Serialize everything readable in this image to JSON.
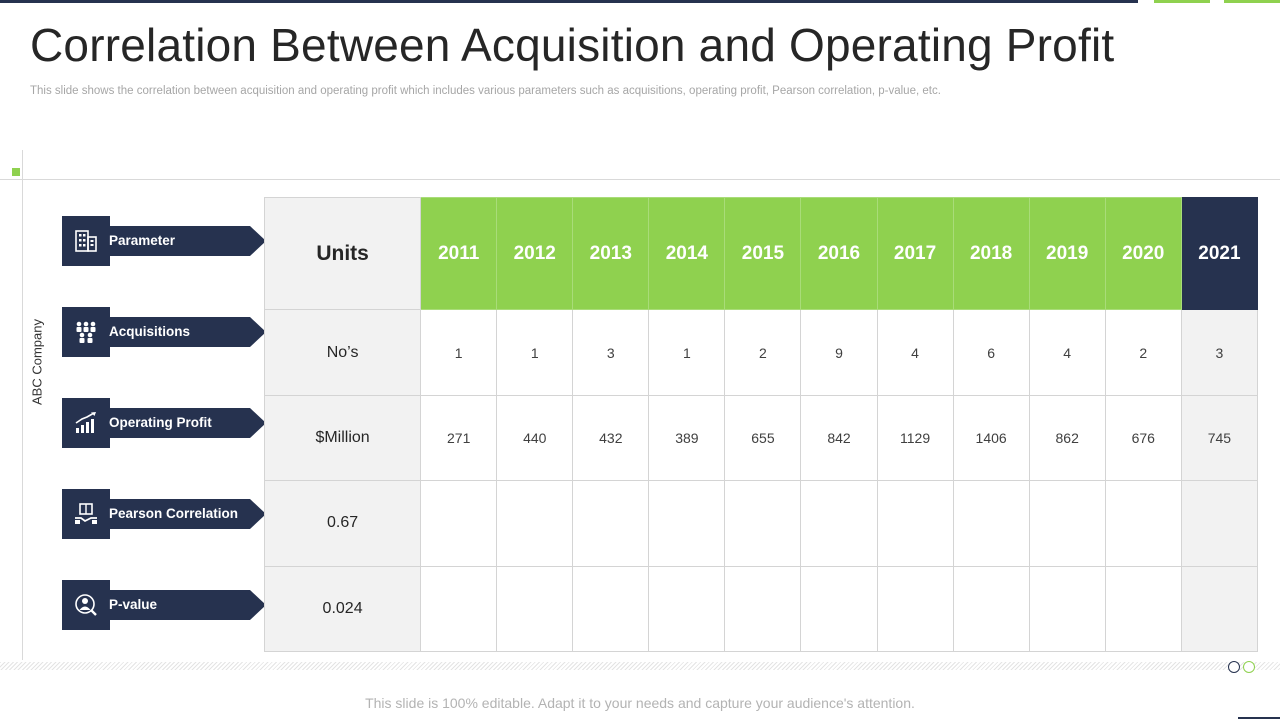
{
  "slide": {
    "title": "Correlation Between Acquisition and Operating Profit",
    "subtitle": "This slide shows the correlation between acquisition and operating profit which includes various parameters such as acquisitions, operating profit, Pearson correlation, p-value, etc.",
    "side_label": "ABC Company",
    "footer": "This slide is 100% editable. Adapt it to your needs and capture your audience's attention."
  },
  "parameters": [
    {
      "label": "Parameter",
      "icon": "building-icon"
    },
    {
      "label": "Acquisitions",
      "icon": "people-group-icon"
    },
    {
      "label": "Operating Profit",
      "icon": "growth-chart-icon"
    },
    {
      "label": "Pearson Correlation",
      "icon": "handshake-box-icon"
    },
    {
      "label": "P-value",
      "icon": "target-person-icon"
    }
  ],
  "table": {
    "units_header": "Units",
    "years": [
      "2011",
      "2012",
      "2013",
      "2014",
      "2015",
      "2016",
      "2017",
      "2018",
      "2019",
      "2020",
      "2021"
    ],
    "rows": [
      {
        "unit": "No’s",
        "values": [
          "1",
          "1",
          "3",
          "1",
          "2",
          "9",
          "4",
          "6",
          "4",
          "2",
          "3"
        ]
      },
      {
        "unit": "$Million",
        "values": [
          "271",
          "440",
          "432",
          "389",
          "655",
          "842",
          "1129",
          "1406",
          "862",
          "676",
          "745"
        ]
      },
      {
        "unit": "0.67",
        "values": [
          "",
          "",
          "",
          "",
          "",
          "",
          "",
          "",
          "",
          "",
          ""
        ]
      },
      {
        "unit": "0.024",
        "values": [
          "",
          "",
          "",
          "",
          "",
          "",
          "",
          "",
          "",
          "",
          ""
        ]
      }
    ]
  },
  "colors": {
    "navy": "#26324f",
    "green": "#8fd14f",
    "light_gray": "#f2f2f2"
  }
}
